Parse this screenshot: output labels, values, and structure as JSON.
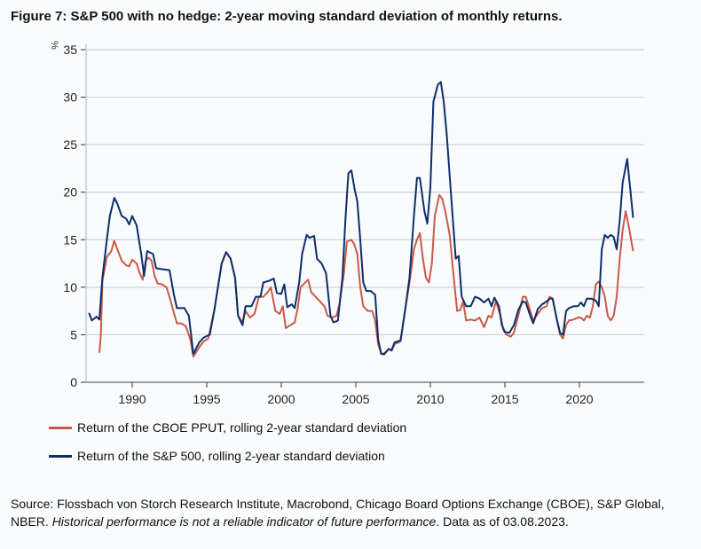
{
  "title": "Figure 7: S&P 500 with no hedge: 2-year moving standard deviation of monthly returns.",
  "chart_data": {
    "type": "line",
    "ylabel": "%",
    "ylim": [
      0,
      35
    ],
    "xlim": [
      1987.0,
      2024.5
    ],
    "yticks": [
      0,
      5,
      10,
      15,
      20,
      25,
      30,
      35
    ],
    "xticks": [
      1990,
      1995,
      2000,
      2005,
      2010,
      2015,
      2020
    ],
    "grid": true,
    "legend": "bottom",
    "series": [
      {
        "name": "Return of the CBOE PPUT, rolling 2-year standard deviation",
        "color": "#c95a47",
        "x": [
          1987.8,
          1987.9,
          1988.0,
          1988.1,
          1988.3,
          1988.6,
          1988.8,
          1989.0,
          1989.3,
          1989.6,
          1989.8,
          1990.0,
          1990.3,
          1990.5,
          1990.7,
          1990.9,
          1991.1,
          1991.3,
          1991.5,
          1991.7,
          1992.0,
          1992.3,
          1992.5,
          1992.8,
          1993.0,
          1993.3,
          1993.6,
          1993.9,
          1994.1,
          1994.5,
          1994.8,
          1995.1,
          1995.5,
          1996.0,
          1996.3,
          1996.6,
          1996.9,
          1997.1,
          1997.4,
          1997.6,
          1997.9,
          1998.2,
          1998.5,
          1998.8,
          1999.1,
          1999.3,
          1999.6,
          1999.9,
          2000.1,
          2000.3,
          2000.6,
          2000.9,
          2001.1,
          2001.3,
          2001.6,
          2001.8,
          2002.0,
          2002.3,
          2002.6,
          2002.9,
          2003.1,
          2003.4,
          2003.7,
          2003.9,
          2004.2,
          2004.4,
          2004.7,
          2004.9,
          2005.1,
          2005.3,
          2005.5,
          2005.8,
          2006.1,
          2006.3,
          2006.5,
          2006.7,
          2006.9,
          2007.2,
          2007.4,
          2007.6,
          2008.0,
          2008.3,
          2008.6,
          2008.9,
          2009.1,
          2009.3,
          2009.5,
          2009.7,
          2009.9,
          2010.1,
          2010.3,
          2010.6,
          2010.8,
          2011.0,
          2011.3,
          2011.6,
          2011.8,
          2012.0,
          2012.2,
          2012.4,
          2012.7,
          2013.0,
          2013.3,
          2013.6,
          2013.9,
          2014.1,
          2014.4,
          2014.7,
          2014.9,
          2015.1,
          2015.4,
          2015.6,
          2015.9,
          2016.2,
          2016.4,
          2016.7,
          2016.9,
          2017.2,
          2017.5,
          2017.8,
          2018.0,
          2018.2,
          2018.5,
          2018.7,
          2018.9,
          2019.1,
          2019.3,
          2019.6,
          2019.9,
          2020.1,
          2020.3,
          2020.5,
          2020.7,
          2020.9,
          2021.1,
          2021.3,
          2021.5,
          2021.7,
          2021.9,
          2022.1,
          2022.3,
          2022.5,
          2022.7,
          2022.9,
          2023.1,
          2023.3,
          2023.6
        ],
        "y": [
          3.1,
          5.0,
          10.7,
          11.5,
          13.2,
          13.8,
          14.9,
          14.0,
          12.8,
          12.3,
          12.2,
          12.9,
          12.5,
          11.5,
          10.8,
          12.8,
          13.1,
          12.8,
          11.2,
          10.4,
          10.3,
          10.0,
          9.0,
          7.3,
          6.2,
          6.2,
          5.9,
          4.5,
          2.7,
          3.7,
          4.3,
          4.6,
          7.5,
          12.5,
          13.7,
          13.0,
          11.0,
          7.0,
          6.3,
          7.5,
          6.8,
          7.2,
          9.0,
          9.0,
          9.5,
          10.0,
          7.5,
          7.2,
          8.0,
          5.7,
          6.0,
          6.3,
          7.8,
          10.0,
          10.5,
          10.8,
          9.5,
          9.0,
          8.5,
          8.0,
          7.0,
          6.8,
          7.0,
          8.2,
          11.5,
          14.8,
          15.0,
          14.5,
          13.5,
          10.0,
          8.0,
          7.5,
          7.5,
          6.5,
          4.0,
          3.0,
          2.9,
          3.5,
          3.3,
          4.0,
          4.3,
          7.5,
          10.5,
          14.0,
          15.0,
          15.7,
          13.0,
          11.0,
          10.5,
          12.5,
          17.5,
          19.7,
          19.3,
          18.0,
          15.5,
          10.5,
          7.5,
          7.6,
          8.5,
          6.5,
          6.6,
          6.5,
          6.8,
          5.8,
          7.0,
          6.8,
          8.5,
          7.0,
          5.5,
          5.0,
          4.8,
          5.2,
          7.0,
          9.0,
          9.0,
          7.5,
          6.5,
          7.2,
          7.8,
          8.0,
          9.0,
          8.8,
          6.5,
          5.0,
          4.6,
          6.0,
          6.5,
          6.6,
          6.8,
          6.8,
          6.5,
          7.0,
          6.8,
          8.0,
          10.3,
          10.6,
          10.0,
          9.0,
          7.0,
          6.5,
          7.0,
          9.0,
          13.0,
          16.0,
          18.0,
          16.5,
          13.8
        ]
      },
      {
        "name": "Return of the S&P 500, rolling 2-year standard deviation",
        "color": "#0c2f6b",
        "x": [
          1987.1,
          1987.3,
          1987.6,
          1987.8,
          1988.0,
          1988.3,
          1988.5,
          1988.8,
          1989.0,
          1989.3,
          1989.6,
          1989.8,
          1990.0,
          1990.3,
          1990.6,
          1990.8,
          1991.0,
          1991.4,
          1991.6,
          1992.0,
          1992.5,
          1992.8,
          1993.0,
          1993.5,
          1993.8,
          1994.1,
          1994.5,
          1994.8,
          1995.2,
          1995.5,
          1996.0,
          1996.3,
          1996.6,
          1996.9,
          1997.1,
          1997.4,
          1997.6,
          1998.0,
          1998.3,
          1998.6,
          1998.8,
          1999.2,
          1999.5,
          1999.7,
          2000.0,
          2000.2,
          2000.4,
          2000.7,
          2000.9,
          2001.2,
          2001.4,
          2001.7,
          2001.9,
          2002.2,
          2002.4,
          2002.7,
          2003.0,
          2003.3,
          2003.5,
          2003.8,
          2004.1,
          2004.3,
          2004.5,
          2004.7,
          2004.9,
          2005.1,
          2005.3,
          2005.5,
          2005.7,
          2006.0,
          2006.3,
          2006.5,
          2006.7,
          2006.9,
          2007.2,
          2007.4,
          2007.6,
          2008.0,
          2008.3,
          2008.6,
          2008.9,
          2009.1,
          2009.3,
          2009.6,
          2009.8,
          2010.0,
          2010.2,
          2010.5,
          2010.7,
          2010.9,
          2011.1,
          2011.4,
          2011.7,
          2011.9,
          2012.1,
          2012.4,
          2012.7,
          2013.0,
          2013.3,
          2013.6,
          2013.9,
          2014.1,
          2014.3,
          2014.6,
          2014.8,
          2015.0,
          2015.3,
          2015.6,
          2015.9,
          2016.2,
          2016.4,
          2016.7,
          2016.9,
          2017.2,
          2017.5,
          2017.8,
          2018.0,
          2018.2,
          2018.5,
          2018.7,
          2018.9,
          2019.1,
          2019.3,
          2019.6,
          2019.9,
          2020.1,
          2020.3,
          2020.5,
          2020.8,
          2021.1,
          2021.3,
          2021.5,
          2021.7,
          2021.9,
          2022.1,
          2022.3,
          2022.5,
          2022.7,
          2022.9,
          2023.2,
          2023.4,
          2023.6
        ],
        "y": [
          7.3,
          6.5,
          6.9,
          6.6,
          11.0,
          15.0,
          17.5,
          19.4,
          18.8,
          17.5,
          17.2,
          16.6,
          17.5,
          16.5,
          13.5,
          11.2,
          13.8,
          13.5,
          12.0,
          11.9,
          11.8,
          9.2,
          7.8,
          7.8,
          7.0,
          3.0,
          4.2,
          4.7,
          5.0,
          7.5,
          12.5,
          13.7,
          13.0,
          11.0,
          7.0,
          6.0,
          8.0,
          8.0,
          9.0,
          9.0,
          10.5,
          10.7,
          10.9,
          9.4,
          9.3,
          10.3,
          7.9,
          8.2,
          7.8,
          10.5,
          13.5,
          15.5,
          15.2,
          15.4,
          13.0,
          12.5,
          11.5,
          7.0,
          6.3,
          6.5,
          11.0,
          17.0,
          22.0,
          22.3,
          20.5,
          19.0,
          15.0,
          10.5,
          9.6,
          9.6,
          9.2,
          4.5,
          3.0,
          3.0,
          3.5,
          3.4,
          4.2,
          4.4,
          7.5,
          11.0,
          17.5,
          21.5,
          21.5,
          18.0,
          16.7,
          20.5,
          29.5,
          31.3,
          31.6,
          29.5,
          26.0,
          19.5,
          13.0,
          13.3,
          9.0,
          8.0,
          8.0,
          9.0,
          8.8,
          8.4,
          8.8,
          8.0,
          8.9,
          8.0,
          6.0,
          5.3,
          5.2,
          6.0,
          7.6,
          8.5,
          8.4,
          7.0,
          6.2,
          7.7,
          8.2,
          8.5,
          8.8,
          8.8,
          6.5,
          5.2,
          5.0,
          7.5,
          7.8,
          8.0,
          8.0,
          8.4,
          8.0,
          8.8,
          8.8,
          8.6,
          8.0,
          14.0,
          15.5,
          15.2,
          15.5,
          15.3,
          14.0,
          17.0,
          21.0,
          23.5,
          20.5,
          17.3
        ]
      }
    ]
  },
  "source": {
    "text": "Source: Flossbach von Storch Research Institute, Macrobond, Chicago Board Options Exchange (CBOE), S&P Global, NBER. ",
    "italic": "Historical performance is not a reliable indicator of future performance",
    "suffix": ". Data as of 03.08.2023."
  }
}
